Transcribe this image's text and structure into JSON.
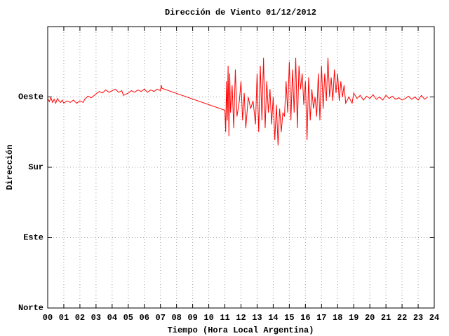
{
  "chart_data": {
    "type": "line",
    "title": "Dirección de Viento 01/12/2012",
    "x_label": "Tiempo (Hora Local Argentina)",
    "y_label": "Dirección",
    "color": "#ff0000",
    "grid": true,
    "xlim": [
      0,
      24
    ],
    "ylim": [
      0,
      360
    ],
    "xticks": [
      {
        "value": 0,
        "label": "00"
      },
      {
        "value": 1,
        "label": "01"
      },
      {
        "value": 2,
        "label": "02"
      },
      {
        "value": 3,
        "label": "03"
      },
      {
        "value": 4,
        "label": "04"
      },
      {
        "value": 5,
        "label": "05"
      },
      {
        "value": 6,
        "label": "06"
      },
      {
        "value": 7,
        "label": "07"
      },
      {
        "value": 8,
        "label": "08"
      },
      {
        "value": 9,
        "label": "09"
      },
      10,
      11,
      12,
      13,
      14,
      15,
      16,
      17,
      18,
      19,
      20,
      21,
      22,
      23,
      24
    ],
    "yticks": [
      {
        "value": 0,
        "label": "Norte"
      },
      {
        "value": 90,
        "label": "Este"
      },
      {
        "value": 180,
        "label": "Sur"
      },
      {
        "value": 270,
        "label": "Oeste"
      }
    ],
    "x": [
      0.0,
      0.1,
      0.2,
      0.3,
      0.4,
      0.5,
      0.6,
      0.7,
      0.8,
      0.9,
      1.0,
      1.2,
      1.4,
      1.6,
      1.8,
      2.0,
      2.2,
      2.3,
      2.5,
      2.7,
      2.9,
      3.0,
      3.2,
      3.4,
      3.6,
      3.8,
      4.0,
      4.2,
      4.4,
      4.6,
      4.7,
      5.0,
      5.2,
      5.4,
      5.6,
      5.8,
      6.0,
      6.2,
      6.4,
      6.6,
      6.8,
      7.0,
      7.05,
      7.1,
      11.0,
      11.05,
      11.1,
      11.15,
      11.2,
      11.25,
      11.3,
      11.35,
      11.45,
      11.55,
      11.65,
      11.75,
      11.9,
      12.0,
      12.1,
      12.2,
      12.3,
      12.45,
      12.6,
      12.75,
      12.9,
      13.0,
      13.1,
      13.2,
      13.3,
      13.4,
      13.5,
      13.6,
      13.7,
      13.8,
      13.9,
      14.0,
      14.1,
      14.2,
      14.3,
      14.4,
      14.5,
      14.6,
      14.7,
      14.8,
      14.9,
      15.0,
      15.1,
      15.2,
      15.3,
      15.4,
      15.5,
      15.6,
      15.7,
      15.8,
      15.9,
      16.0,
      16.1,
      16.2,
      16.3,
      16.4,
      16.5,
      16.6,
      16.7,
      16.8,
      16.9,
      17.0,
      17.1,
      17.2,
      17.3,
      17.4,
      17.5,
      17.6,
      17.7,
      17.8,
      17.9,
      18.0,
      18.1,
      18.2,
      18.3,
      18.4,
      18.5,
      18.7,
      18.9,
      19.0,
      19.2,
      19.4,
      19.6,
      19.8,
      20.0,
      20.2,
      20.4,
      20.6,
      20.8,
      21.0,
      21.2,
      21.4,
      21.6,
      21.8,
      22.0,
      22.2,
      22.4,
      22.6,
      22.8,
      23.0,
      23.2,
      23.4,
      23.6
    ],
    "values": [
      268,
      264,
      269,
      263,
      267,
      262,
      268,
      265,
      263,
      266,
      262,
      265,
      263,
      266,
      262,
      265,
      263,
      267,
      271,
      269,
      272,
      274,
      277,
      275,
      279,
      276,
      278,
      280,
      276,
      278,
      272,
      275,
      278,
      276,
      279,
      277,
      280,
      276,
      279,
      277,
      280,
      278,
      285,
      281,
      253,
      225,
      290,
      240,
      310,
      220,
      300,
      250,
      285,
      230,
      305,
      245,
      265,
      290,
      240,
      275,
      230,
      270,
      255,
      265,
      235,
      300,
      225,
      310,
      240,
      320,
      230,
      290,
      250,
      280,
      235,
      270,
      215,
      260,
      208,
      255,
      225,
      250,
      245,
      290,
      250,
      315,
      240,
      305,
      250,
      320,
      230,
      310,
      280,
      300,
      260,
      290,
      215,
      295,
      240,
      280,
      255,
      270,
      245,
      300,
      240,
      310,
      255,
      300,
      265,
      320,
      270,
      295,
      265,
      305,
      275,
      300,
      265,
      290,
      270,
      285,
      262,
      270,
      262,
      275,
      268,
      272,
      266,
      271,
      268,
      273,
      267,
      270,
      266,
      272,
      268,
      271,
      267,
      269,
      266,
      268,
      271,
      267,
      270,
      266,
      272,
      267,
      270
    ]
  }
}
